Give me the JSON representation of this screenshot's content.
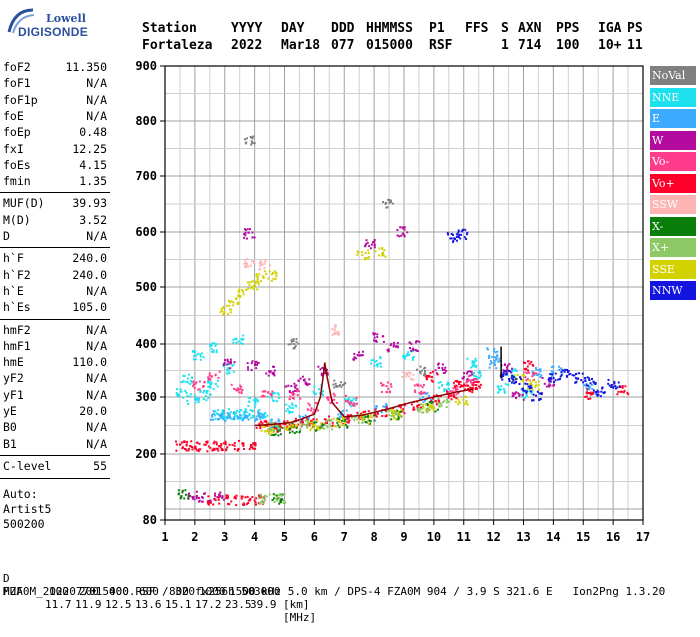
{
  "logo": {
    "brand": "Lowell",
    "product": "DIGISONDE"
  },
  "header": {
    "cells": [
      {
        "text": "Station",
        "row": 0,
        "col": 0
      },
      {
        "text": "Fortaleza",
        "row": 1,
        "col": 0
      },
      {
        "text": "YYYY",
        "row": 0,
        "col": 1
      },
      {
        "text": "2022",
        "row": 1,
        "col": 1
      },
      {
        "text": "DAY",
        "row": 0,
        "col": 2
      },
      {
        "text": "Mar18",
        "row": 1,
        "col": 2
      },
      {
        "text": "DDD",
        "row": 0,
        "col": 3
      },
      {
        "text": "077",
        "row": 1,
        "col": 3
      },
      {
        "text": "HHMMSS",
        "row": 0,
        "col": 4
      },
      {
        "text": "015000",
        "row": 1,
        "col": 4
      },
      {
        "text": "P1",
        "row": 0,
        "col": 5
      },
      {
        "text": "RSF",
        "row": 1,
        "col": 5
      },
      {
        "text": "FFS",
        "row": 0,
        "col": 6
      },
      {
        "text": "S",
        "row": 0,
        "col": 7
      },
      {
        "text": "1",
        "row": 1,
        "col": 7
      },
      {
        "text": "AXN",
        "row": 0,
        "col": 8
      },
      {
        "text": "714",
        "row": 1,
        "col": 8
      },
      {
        "text": "PPS",
        "row": 0,
        "col": 9
      },
      {
        "text": "100",
        "row": 1,
        "col": 9
      },
      {
        "text": "IGA",
        "row": 0,
        "col": 10
      },
      {
        "text": "10+",
        "row": 1,
        "col": 10
      },
      {
        "text": "PS",
        "row": 0,
        "col": 11
      },
      {
        "text": "11",
        "row": 1,
        "col": 11
      }
    ]
  },
  "parameters": [
    {
      "label": "foF2",
      "value": "11.350",
      "group": 0
    },
    {
      "label": "foF1",
      "value": "N/A",
      "group": 0
    },
    {
      "label": "foF1p",
      "value": "N/A",
      "group": 0
    },
    {
      "label": "foE",
      "value": "N/A",
      "group": 0
    },
    {
      "label": "foEp",
      "value": "0.48",
      "group": 0
    },
    {
      "label": "fxI",
      "value": "12.25",
      "group": 0
    },
    {
      "label": "foEs",
      "value": "4.15",
      "group": 0
    },
    {
      "label": "fmin",
      "value": "1.35",
      "group": 0
    },
    {
      "label": "MUF(D)",
      "value": "39.93",
      "group": 1
    },
    {
      "label": "M(D)",
      "value": "3.52",
      "group": 1
    },
    {
      "label": "D",
      "value": "N/A",
      "group": 1
    },
    {
      "label": "h`F",
      "value": "240.0",
      "group": 2
    },
    {
      "label": "h`F2",
      "value": "240.0",
      "group": 2
    },
    {
      "label": "h`E",
      "value": "N/A",
      "group": 2
    },
    {
      "label": "h`Es",
      "value": "105.0",
      "group": 2
    },
    {
      "label": "hmF2",
      "value": "N/A",
      "group": 3
    },
    {
      "label": "hmF1",
      "value": "N/A",
      "group": 3
    },
    {
      "label": "hmE",
      "value": "110.0",
      "group": 3
    },
    {
      "label": "yF2",
      "value": "N/A",
      "group": 3
    },
    {
      "label": "yF1",
      "value": "N/A",
      "group": 3
    },
    {
      "label": "yE",
      "value": "20.0",
      "group": 3
    },
    {
      "label": "B0",
      "value": "N/A",
      "group": 3
    },
    {
      "label": "B1",
      "value": "N/A",
      "group": 3
    },
    {
      "label": "C-level",
      "value": "55",
      "group": 4
    }
  ],
  "autoscaling": {
    "line1": "Auto:",
    "line2": "Artist5",
    "line3": "500200"
  },
  "legend": [
    {
      "label": "NoVal",
      "color": "#808080"
    },
    {
      "label": "NNE",
      "color": "#1ee1f0"
    },
    {
      "label": "E",
      "color": "#3caaff"
    },
    {
      "label": "W",
      "color": "#b40aa0"
    },
    {
      "label": "Vo-",
      "color": "#ff3c8c"
    },
    {
      "label": "Vo+",
      "color": "#ff0028"
    },
    {
      "label": "SSW",
      "color": "#ffb4b4"
    },
    {
      "label": "X-",
      "color": "#0a7d0a"
    },
    {
      "label": "X+",
      "color": "#8cc864"
    },
    {
      "label": "SSE",
      "color": "#d2d200"
    },
    {
      "label": "NNW",
      "color": "#1414e1"
    }
  ],
  "footer": {
    "distance_label": "D",
    "distances": [
      "100",
      "200",
      "400",
      "600",
      "800",
      "1000",
      "1500",
      "3000"
    ],
    "distance_unit": "[km]",
    "muf_label": "MUF",
    "mufs": [
      "11.7",
      "11.9",
      "12.5",
      "13.6",
      "15.1",
      "17.2",
      "23.5",
      "39.9"
    ],
    "muf_unit": "[MHz]",
    "info": "FZA0M_2022077015000.RSF / 320fx256h 50 kHz 5.0 km / DPS-4 FZA0M 904 / 3.9 S 321.6 E   Ion2Png 1.3.20"
  },
  "chart_data": {
    "type": "scatter",
    "title": "",
    "xlabel": "",
    "ylabel": "",
    "xlim": [
      1,
      17
    ],
    "ylim": [
      80,
      900
    ],
    "x_ticks": [
      1,
      2,
      3,
      4,
      5,
      6,
      7,
      8,
      9,
      10,
      11,
      12,
      13,
      14,
      15,
      16,
      17
    ],
    "y_ticks": [
      80,
      200,
      300,
      400,
      500,
      600,
      700,
      800,
      900
    ],
    "grid": true,
    "legend_position": "right",
    "series": [
      {
        "name": "NoVal",
        "points": [
          [
            3.8,
            768
          ],
          [
            8.4,
            652
          ],
          [
            5.3,
            402
          ],
          [
            6.8,
            328
          ],
          [
            9.6,
            350
          ]
        ]
      },
      {
        "name": "NNE",
        "points": [
          [
            2.8,
            270
          ],
          [
            3.0,
            272
          ],
          [
            3.3,
            271
          ],
          [
            3.5,
            271
          ],
          [
            3.8,
            272
          ],
          [
            4.2,
            272
          ],
          [
            1.9,
            298
          ],
          [
            2.3,
            305
          ],
          [
            2.6,
            325
          ],
          [
            3.1,
            355
          ],
          [
            3.4,
            410
          ],
          [
            3.9,
            292
          ],
          [
            4.6,
            300
          ],
          [
            5.2,
            282
          ],
          [
            6.1,
            315
          ],
          [
            7.2,
            294
          ],
          [
            8.0,
            368
          ],
          [
            9.1,
            380
          ],
          [
            10.3,
            322
          ],
          [
            11.2,
            365
          ],
          [
            11.5,
            342
          ],
          [
            12.3,
            318
          ],
          [
            12.6,
            345
          ],
          [
            13.1,
            308
          ],
          [
            1.5,
            308
          ],
          [
            1.7,
            335
          ],
          [
            2.1,
            380
          ],
          [
            2.5,
            395
          ]
        ]
      },
      {
        "name": "E",
        "points": [
          [
            3.1,
            268
          ],
          [
            3.6,
            268
          ],
          [
            4.1,
            268
          ],
          [
            2.7,
            268
          ],
          [
            4.7,
            255
          ],
          [
            5.6,
            262
          ],
          [
            6.9,
            270
          ],
          [
            8.2,
            282
          ],
          [
            9.7,
            300
          ],
          [
            12.0,
            365
          ],
          [
            13.4,
            348
          ],
          [
            14.1,
            350
          ],
          [
            15.2,
            318
          ],
          [
            11.9,
            385
          ]
        ]
      },
      {
        "name": "W",
        "points": [
          [
            3.1,
            365
          ],
          [
            3.9,
            360
          ],
          [
            4.5,
            350
          ],
          [
            5.2,
            318
          ],
          [
            5.6,
            332
          ],
          [
            6.3,
            350
          ],
          [
            7.4,
            378
          ],
          [
            8.1,
            412
          ],
          [
            8.6,
            395
          ],
          [
            9.3,
            398
          ],
          [
            10.2,
            356
          ],
          [
            11.1,
            342
          ],
          [
            3.8,
            598
          ],
          [
            7.8,
            580
          ],
          [
            8.9,
            602
          ],
          [
            12.4,
            355
          ],
          [
            12.8,
            305
          ],
          [
            13.8,
            330
          ],
          [
            1.9,
            125
          ],
          [
            2.3,
            122
          ],
          [
            2.8,
            123
          ]
        ]
      },
      {
        "name": "Vo-",
        "points": [
          [
            2.1,
            325
          ],
          [
            2.6,
            342
          ],
          [
            3.4,
            318
          ],
          [
            4.4,
            305
          ],
          [
            5.3,
            305
          ],
          [
            5.9,
            283
          ],
          [
            6.6,
            299
          ],
          [
            7.2,
            295
          ],
          [
            8.4,
            320
          ],
          [
            9.5,
            318
          ],
          [
            10.6,
            315
          ],
          [
            11.2,
            332
          ],
          [
            13.2,
            339
          ]
        ]
      },
      {
        "name": "Vo+",
        "points": [
          [
            1.5,
            216
          ],
          [
            1.8,
            216
          ],
          [
            2.2,
            215
          ],
          [
            2.6,
            216
          ],
          [
            3.0,
            217
          ],
          [
            3.4,
            216
          ],
          [
            3.8,
            217
          ],
          [
            4.2,
            252
          ],
          [
            4.6,
            248
          ],
          [
            5.0,
            252
          ],
          [
            5.4,
            258
          ],
          [
            5.9,
            256
          ],
          [
            6.4,
            259
          ],
          [
            7.0,
            262
          ],
          [
            7.6,
            270
          ],
          [
            8.2,
            275
          ],
          [
            8.8,
            281
          ],
          [
            9.4,
            288
          ],
          [
            10.0,
            297
          ],
          [
            10.6,
            305
          ],
          [
            11.2,
            315
          ],
          [
            9.9,
            340
          ],
          [
            10.8,
            330
          ],
          [
            11.4,
            322
          ],
          [
            13.1,
            360
          ],
          [
            15.1,
            307
          ],
          [
            16.3,
            315
          ],
          [
            2.6,
            118
          ],
          [
            3.2,
            118
          ],
          [
            3.7,
            118
          ],
          [
            4.1,
            118
          ]
        ]
      },
      {
        "name": "SSW",
        "points": [
          [
            3.8,
            546
          ],
          [
            4.3,
            542
          ],
          [
            6.7,
            426
          ],
          [
            9.1,
            342
          ]
        ]
      },
      {
        "name": "X-",
        "points": [
          [
            4.7,
            242
          ],
          [
            5.3,
            247
          ],
          [
            6.1,
            250
          ],
          [
            6.9,
            256
          ],
          [
            7.8,
            263
          ],
          [
            8.7,
            271
          ],
          [
            9.9,
            285
          ],
          [
            4.7,
            120
          ],
          [
            1.6,
            130
          ]
        ]
      },
      {
        "name": "X+",
        "points": [
          [
            4.6,
            249
          ],
          [
            5.6,
            252
          ],
          [
            6.4,
            254
          ],
          [
            7.4,
            262
          ],
          [
            8.6,
            273
          ],
          [
            9.6,
            283
          ],
          [
            10.3,
            292
          ],
          [
            4.3,
            120
          ],
          [
            4.8,
            121
          ]
        ]
      },
      {
        "name": "SSE",
        "points": [
          [
            3.0,
            460
          ],
          [
            3.3,
            475
          ],
          [
            3.6,
            492
          ],
          [
            3.9,
            505
          ],
          [
            4.2,
            516
          ],
          [
            4.5,
            522
          ],
          [
            7.6,
            560
          ],
          [
            8.2,
            565
          ],
          [
            4.4,
            245
          ],
          [
            5.2,
            249
          ],
          [
            6.0,
            252
          ],
          [
            6.8,
            258
          ],
          [
            7.7,
            264
          ],
          [
            8.7,
            272
          ],
          [
            9.8,
            282
          ],
          [
            10.9,
            296
          ],
          [
            12.8,
            335
          ],
          [
            13.3,
            325
          ]
        ]
      },
      {
        "name": "NNW",
        "points": [
          [
            12.4,
            342
          ],
          [
            12.7,
            332
          ],
          [
            13.1,
            318
          ],
          [
            13.4,
            303
          ],
          [
            14.0,
            337
          ],
          [
            14.4,
            348
          ],
          [
            14.8,
            338
          ],
          [
            15.2,
            330
          ],
          [
            15.5,
            312
          ],
          [
            16.0,
            326
          ],
          [
            10.6,
            592
          ],
          [
            10.9,
            598
          ]
        ]
      }
    ],
    "traces": [
      {
        "name": "h`F trace",
        "color": "#8b0000",
        "points": [
          [
            4.0,
            250
          ],
          [
            4.6,
            252
          ],
          [
            5.2,
            255
          ],
          [
            5.6,
            262
          ],
          [
            6.0,
            270
          ],
          [
            6.2,
            300
          ],
          [
            6.3,
            340
          ],
          [
            6.35,
            365
          ],
          [
            6.4,
            345
          ],
          [
            6.6,
            290
          ],
          [
            7.0,
            265
          ],
          [
            7.6,
            268
          ],
          [
            8.4,
            278
          ],
          [
            9.2,
            290
          ],
          [
            10.0,
            300
          ],
          [
            10.8,
            310
          ],
          [
            11.3,
            315
          ]
        ]
      },
      {
        "name": "fxI marker",
        "color": "#000000",
        "points": [
          [
            12.25,
            335
          ],
          [
            12.25,
            395
          ]
        ]
      }
    ]
  }
}
